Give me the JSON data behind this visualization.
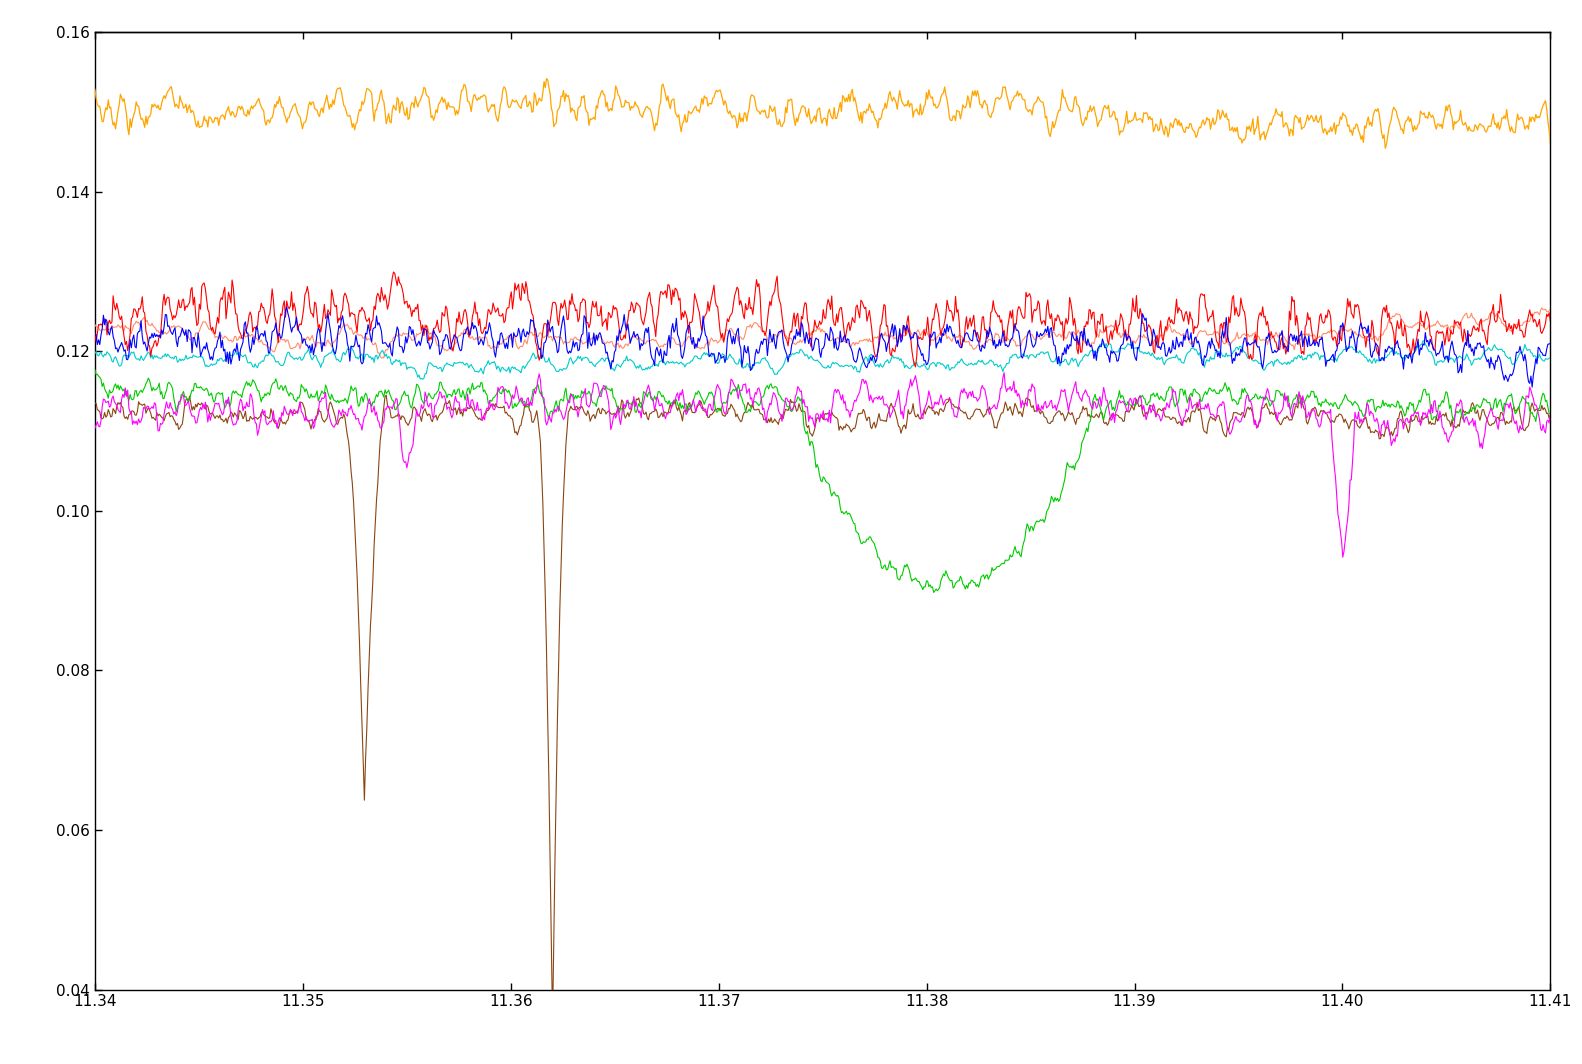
{
  "title": "",
  "xlabel": "",
  "ylabel": "",
  "xlim": [
    11.34,
    11.41
  ],
  "ylim": [
    0.04,
    0.16
  ],
  "xticks": [
    11.34,
    11.35,
    11.36,
    11.37,
    11.38,
    11.39,
    11.4,
    11.41
  ],
  "yticks": [
    0.04,
    0.06,
    0.08,
    0.1,
    0.12,
    0.14,
    0.16
  ],
  "background_color": "#ffffff",
  "line_colors": [
    "#FFA500",
    "#FF0000",
    "#FF8C69",
    "#0000FF",
    "#00CCCC",
    "#00CC00",
    "#FF00FF",
    "#8B4513"
  ],
  "num_points": 1200,
  "seed": 42
}
